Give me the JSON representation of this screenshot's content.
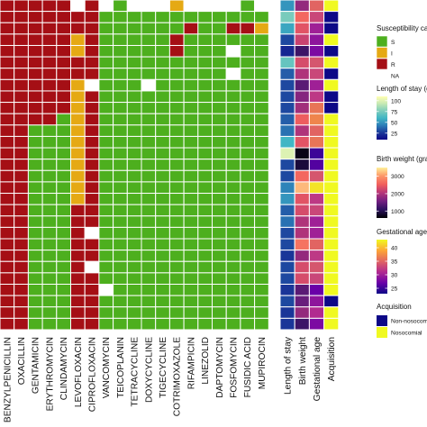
{
  "colors": {
    "S": "#4DAF1E",
    "I": "#E5A914",
    "R": "#A50F15",
    "NA": "#FFFFFF",
    "grid": "#FFFFFF",
    "tile_border": "#FFFFFF"
  },
  "chart_data": [
    {
      "type": "heatmap",
      "title": "",
      "xlabel": "",
      "ylabel": "",
      "columns": [
        "BENZYLPENICILLIN",
        "OXACILLIN",
        "GENTAMICIN",
        "ERYTHROMYCIN",
        "CLINDAMYCIN",
        "LEVOFLOXACIN",
        "CIPROFLOXACIN",
        "VANCOMYCIN",
        "TEICOPLANIN",
        "TETRACYCLINE",
        "DOXYCYCLINE",
        "TIGECYCLINE",
        "COTRIMOXAZOLE",
        "RIFAMPICIN",
        "LINEZOLID",
        "DAPTOMYCIN",
        "FOSFOMYCIN",
        "FUSIDIC ACID",
        "MUPIROCIN"
      ],
      "n_isolates": 29,
      "legend": {
        "title": "Susceptibility category",
        "entries": [
          {
            "key": "S",
            "label": "S"
          },
          {
            "key": "I",
            "label": "I"
          },
          {
            "key": "R",
            "label": "R"
          },
          {
            "key": "NA",
            "label": "NA"
          }
        ]
      },
      "rows": [
        [
          "R",
          "R",
          "R",
          "R",
          "R",
          "NA",
          "R",
          "NA",
          "S",
          "NA",
          "NA",
          "NA",
          "I",
          "NA",
          "NA",
          "NA",
          "NA",
          "S",
          "NA"
        ],
        [
          "R",
          "R",
          "R",
          "R",
          "R",
          "R",
          "R",
          "S",
          "S",
          "S",
          "S",
          "S",
          "S",
          "S",
          "S",
          "S",
          "S",
          "S",
          "S"
        ],
        [
          "R",
          "R",
          "R",
          "R",
          "R",
          "R",
          "R",
          "S",
          "S",
          "S",
          "S",
          "S",
          "S",
          "R",
          "S",
          "S",
          "R",
          "R",
          "I"
        ],
        [
          "R",
          "R",
          "R",
          "R",
          "R",
          "I",
          "R",
          "S",
          "S",
          "S",
          "S",
          "S",
          "R",
          "S",
          "S",
          "S",
          "S",
          "S",
          "S"
        ],
        [
          "R",
          "R",
          "R",
          "R",
          "R",
          "I",
          "R",
          "S",
          "S",
          "S",
          "S",
          "S",
          "R",
          "S",
          "S",
          "S",
          "NA",
          "S",
          "S"
        ],
        [
          "R",
          "R",
          "R",
          "R",
          "R",
          "R",
          "R",
          "S",
          "S",
          "S",
          "S",
          "S",
          "S",
          "S",
          "S",
          "S",
          "S",
          "S",
          "S"
        ],
        [
          "R",
          "R",
          "R",
          "R",
          "R",
          "R",
          "R",
          "S",
          "S",
          "S",
          "S",
          "S",
          "S",
          "S",
          "S",
          "S",
          "NA",
          "S",
          "S"
        ],
        [
          "R",
          "R",
          "R",
          "R",
          "R",
          "I",
          "NA",
          "S",
          "S",
          "S",
          "NA",
          "S",
          "S",
          "S",
          "S",
          "S",
          "S",
          "S",
          "S"
        ],
        [
          "R",
          "R",
          "R",
          "R",
          "R",
          "I",
          "R",
          "S",
          "S",
          "S",
          "S",
          "S",
          "S",
          "S",
          "S",
          "S",
          "S",
          "S",
          "S"
        ],
        [
          "R",
          "R",
          "R",
          "R",
          "R",
          "I",
          "R",
          "S",
          "S",
          "S",
          "S",
          "S",
          "S",
          "S",
          "S",
          "S",
          "S",
          "S",
          "S"
        ],
        [
          "R",
          "R",
          "R",
          "R",
          "S",
          "I",
          "R",
          "S",
          "S",
          "S",
          "S",
          "S",
          "S",
          "S",
          "S",
          "S",
          "S",
          "S",
          "S"
        ],
        [
          "R",
          "R",
          "S",
          "S",
          "S",
          "I",
          "R",
          "S",
          "S",
          "S",
          "S",
          "S",
          "S",
          "S",
          "S",
          "S",
          "S",
          "S",
          "S"
        ],
        [
          "R",
          "R",
          "S",
          "S",
          "S",
          "I",
          "R",
          "S",
          "S",
          "S",
          "S",
          "S",
          "S",
          "S",
          "S",
          "S",
          "S",
          "S",
          "S"
        ],
        [
          "R",
          "R",
          "S",
          "S",
          "S",
          "I",
          "R",
          "S",
          "S",
          "S",
          "S",
          "S",
          "S",
          "S",
          "S",
          "S",
          "S",
          "S",
          "S"
        ],
        [
          "R",
          "R",
          "S",
          "S",
          "S",
          "I",
          "R",
          "S",
          "S",
          "S",
          "S",
          "S",
          "S",
          "S",
          "S",
          "S",
          "S",
          "S",
          "S"
        ],
        [
          "R",
          "R",
          "S",
          "S",
          "S",
          "I",
          "R",
          "S",
          "S",
          "S",
          "S",
          "S",
          "S",
          "S",
          "S",
          "S",
          "S",
          "S",
          "S"
        ],
        [
          "R",
          "R",
          "S",
          "S",
          "S",
          "I",
          "R",
          "S",
          "S",
          "S",
          "S",
          "S",
          "S",
          "S",
          "S",
          "S",
          "S",
          "S",
          "S"
        ],
        [
          "R",
          "R",
          "S",
          "S",
          "S",
          "I",
          "R",
          "S",
          "S",
          "S",
          "S",
          "S",
          "S",
          "S",
          "S",
          "S",
          "S",
          "S",
          "S"
        ],
        [
          "R",
          "R",
          "S",
          "S",
          "S",
          "R",
          "R",
          "S",
          "S",
          "S",
          "S",
          "S",
          "S",
          "S",
          "S",
          "S",
          "S",
          "S",
          "S"
        ],
        [
          "R",
          "R",
          "S",
          "S",
          "S",
          "R",
          "R",
          "S",
          "S",
          "S",
          "S",
          "S",
          "S",
          "S",
          "S",
          "S",
          "S",
          "S",
          "S"
        ],
        [
          "R",
          "R",
          "S",
          "S",
          "S",
          "R",
          "NA",
          "S",
          "S",
          "S",
          "S",
          "S",
          "S",
          "S",
          "S",
          "S",
          "S",
          "S",
          "S"
        ],
        [
          "R",
          "R",
          "S",
          "S",
          "S",
          "R",
          "R",
          "S",
          "S",
          "S",
          "S",
          "S",
          "S",
          "S",
          "S",
          "S",
          "S",
          "S",
          "S"
        ],
        [
          "R",
          "R",
          "S",
          "S",
          "S",
          "R",
          "R",
          "S",
          "S",
          "S",
          "S",
          "S",
          "S",
          "S",
          "S",
          "S",
          "S",
          "S",
          "S"
        ],
        [
          "R",
          "R",
          "S",
          "S",
          "S",
          "R",
          "NA",
          "S",
          "S",
          "S",
          "S",
          "S",
          "S",
          "S",
          "S",
          "S",
          "S",
          "S",
          "S"
        ],
        [
          "R",
          "R",
          "S",
          "S",
          "S",
          "R",
          "R",
          "S",
          "S",
          "S",
          "S",
          "S",
          "S",
          "S",
          "S",
          "S",
          "S",
          "S",
          "S"
        ],
        [
          "R",
          "R",
          "S",
          "S",
          "S",
          "R",
          "R",
          "NA",
          "S",
          "S",
          "S",
          "S",
          "S",
          "S",
          "S",
          "S",
          "S",
          "S",
          "S"
        ],
        [
          "R",
          "R",
          "S",
          "S",
          "S",
          "R",
          "R",
          "S",
          "S",
          "S",
          "S",
          "S",
          "S",
          "S",
          "S",
          "S",
          "S",
          "S",
          "S"
        ],
        [
          "R",
          "R",
          "S",
          "S",
          "S",
          "R",
          "R",
          "S",
          "S",
          "S",
          "S",
          "S",
          "S",
          "S",
          "S",
          "S",
          "S",
          "S",
          "S"
        ],
        [
          "R",
          "R",
          "S",
          "S",
          "S",
          "R",
          "R",
          "S",
          "S",
          "S",
          "S",
          "S",
          "S",
          "S",
          "S",
          "S",
          "S",
          "S",
          "S"
        ]
      ]
    },
    {
      "type": "heatmap",
      "title": "",
      "columns": [
        "Length of stay",
        "Birth weight",
        "Gestational age",
        "Acquisition"
      ],
      "length_of_stay": [
        50,
        75,
        55,
        30,
        20,
        70,
        35,
        30,
        30,
        30,
        35,
        40,
        60,
        100,
        30,
        30,
        45,
        50,
        35,
        40,
        30,
        30,
        25,
        30,
        30,
        25,
        30,
        25,
        25
      ],
      "birth_weight": [
        1800,
        2600,
        2400,
        2200,
        1200,
        2300,
        2000,
        1400,
        1700,
        1900,
        2500,
        2000,
        2400,
        700,
        900,
        2600,
        3200,
        2400,
        2300,
        2000,
        2000,
        2700,
        1800,
        2300,
        2300,
        1400,
        1500,
        1800,
        1200
      ],
      "gestational_age": [
        35,
        33,
        30,
        29,
        28,
        34,
        33,
        30,
        32,
        36,
        37,
        35,
        36,
        25,
        26,
        34,
        42,
        32,
        33,
        30,
        30,
        35,
        32,
        34,
        33,
        27,
        29,
        31,
        28
      ],
      "acquisition": [
        "Nosocomial",
        "Non-nosocomial",
        "Non-nosocomial",
        "Nosocomial",
        "Non-nosocomial",
        "Nosocomial",
        "Non-nosocomial",
        "Nosocomial",
        "Non-nosocomial",
        "Non-nosocomial",
        "Nosocomial",
        "Nosocomial",
        "Nosocomial",
        "Nosocomial",
        "Nosocomial",
        "Nosocomial",
        "Nosocomial",
        "Nosocomial",
        "Nosocomial",
        "Nosocomial",
        "Nosocomial",
        "Nosocomial",
        "Nosocomial",
        "Nosocomial",
        "Nosocomial",
        "Nosocomial",
        "Non-nosocomial",
        "Nosocomial",
        "Nosocomial"
      ],
      "legends": {
        "length_of_stay": {
          "title": "Length of stay (days)",
          "ticks": [
            25,
            50,
            75,
            100
          ],
          "range": [
            10,
            110
          ],
          "palette": [
            "#0D0887",
            "#1B3A9A",
            "#2C7FB8",
            "#41B6C4",
            "#7FCDBB",
            "#C7E9B4",
            "#FFFFB2"
          ]
        },
        "birth_weight": {
          "title": "Birth weight (grams)",
          "ticks": [
            1000,
            2000,
            3000
          ],
          "range": [
            600,
            3500
          ],
          "palette": [
            "#000004",
            "#2C115F",
            "#721F81",
            "#B63679",
            "#F1605D",
            "#FD9668",
            "#FEF19A"
          ]
        },
        "gestational_age": {
          "title": "Gestational age (weeks)",
          "ticks": [
            25,
            30,
            35,
            40
          ],
          "range": [
            23,
            43
          ],
          "palette": [
            "#0D0887",
            "#6A00A8",
            "#B12A90",
            "#E16462",
            "#FCA636",
            "#F0F921"
          ]
        },
        "acquisition": {
          "title": "Acquisition",
          "entries": [
            {
              "label": "Non-nosocomial",
              "color": "#0D0887"
            },
            {
              "label": "Nosocomial",
              "color": "#F0F921"
            }
          ]
        }
      }
    }
  ]
}
